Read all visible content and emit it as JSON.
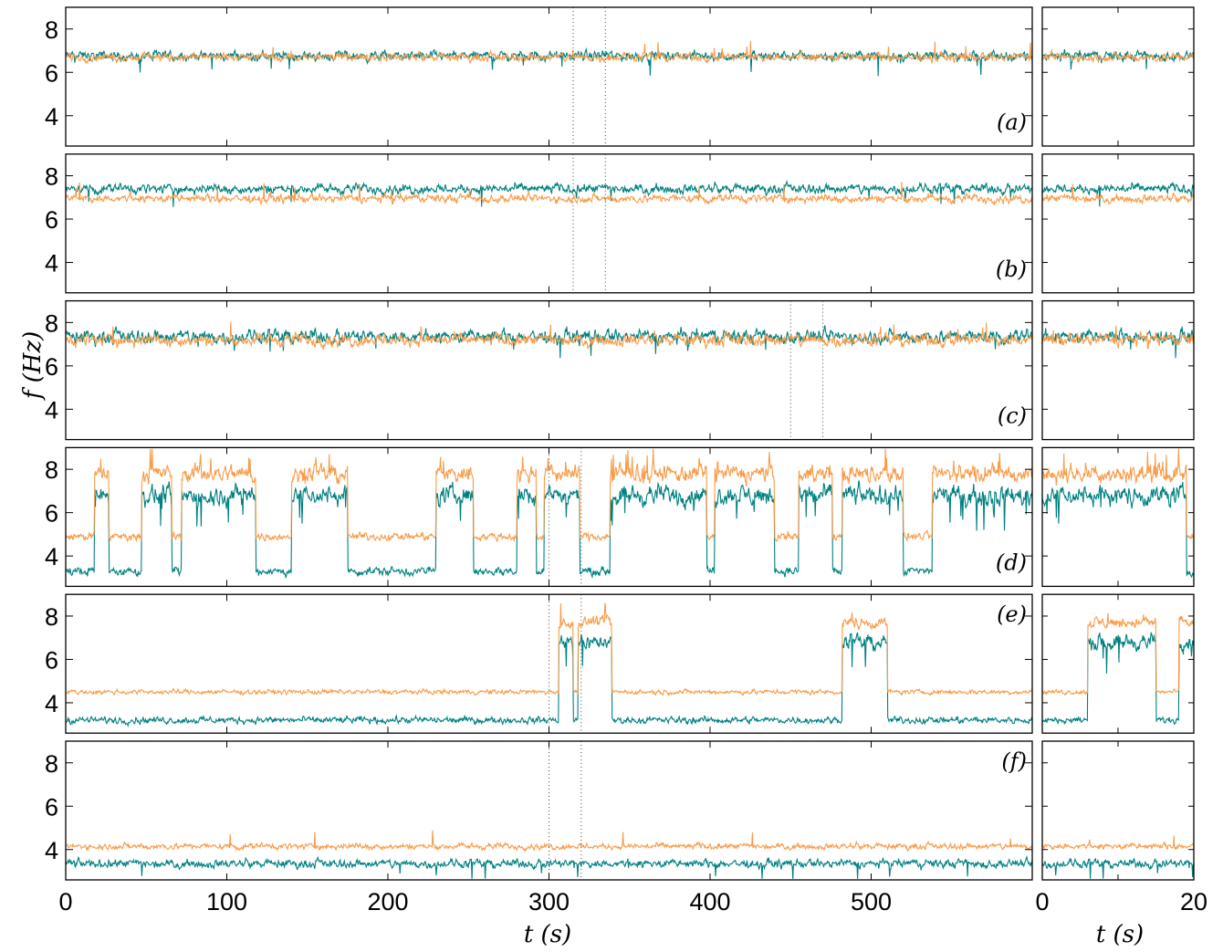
{
  "colors": {
    "series_teal": "#008080",
    "series_orange": "#F89C4A",
    "frame": "#000000"
  },
  "chart_data": {
    "type": "line",
    "title": "",
    "ylabel": "f (Hz)",
    "xlabel": "t (s)",
    "ylim": [
      2.6,
      9.0
    ],
    "yticks": [
      "4",
      "6",
      "8"
    ],
    "main_xlim": [
      0,
      600
    ],
    "main_xticks": [
      "0",
      "100",
      "200",
      "300",
      "400",
      "500"
    ],
    "zoom_xlim": [
      0,
      20
    ],
    "zoom_xticks": [
      "0",
      "20"
    ],
    "series_colors": [
      "#008080",
      "#F89C4A"
    ],
    "panels": [
      {
        "label": "(a)",
        "label_pos": "bottom-right",
        "markers": [
          315,
          335
        ],
        "teal": {
          "baseline": 6.75,
          "noise": 0.35
        },
        "orange": {
          "baseline": 6.7,
          "noise": 0.3
        }
      },
      {
        "label": "(b)",
        "label_pos": "bottom-right",
        "markers": [
          315,
          335
        ],
        "teal": {
          "baseline": 7.4,
          "noise": 0.35
        },
        "orange": {
          "baseline": 6.95,
          "noise": 0.3
        }
      },
      {
        "label": "(c)",
        "label_pos": "bottom-right",
        "markers": [
          450,
          470
        ],
        "teal": {
          "baseline": 7.35,
          "noise": 0.5
        },
        "orange": {
          "baseline": 7.2,
          "noise": 0.45
        }
      },
      {
        "label": "(d)",
        "label_pos": "bottom-right",
        "markers": [
          300,
          320
        ],
        "up_intervals": [
          [
            18,
            27
          ],
          [
            47,
            66
          ],
          [
            72,
            118
          ],
          [
            140,
            175
          ],
          [
            230,
            253
          ],
          [
            280,
            292
          ],
          [
            297,
            319
          ],
          [
            338,
            398
          ],
          [
            403,
            440
          ],
          [
            455,
            476
          ],
          [
            482,
            520
          ],
          [
            538,
            600
          ]
        ],
        "teal": {
          "low": 3.3,
          "high": 6.8,
          "noise": 0.45
        },
        "orange": {
          "low": 4.9,
          "high": 7.8,
          "noise": 0.4
        }
      },
      {
        "label": "(e)",
        "label_pos": "top-right",
        "markers": [
          300,
          320
        ],
        "up_intervals": [
          [
            306,
            315
          ],
          [
            318,
            339
          ],
          [
            482,
            510
          ]
        ],
        "teal": {
          "low": 3.2,
          "high": 6.8,
          "noise": 0.35
        },
        "orange": {
          "low": 4.5,
          "high": 7.7,
          "noise": 0.25
        }
      },
      {
        "label": "(f)",
        "label_pos": "top-right",
        "markers": [
          300,
          320
        ],
        "teal": {
          "baseline": 3.35,
          "noise": 0.3
        },
        "orange": {
          "baseline": 4.15,
          "noise": 0.22
        }
      }
    ]
  }
}
